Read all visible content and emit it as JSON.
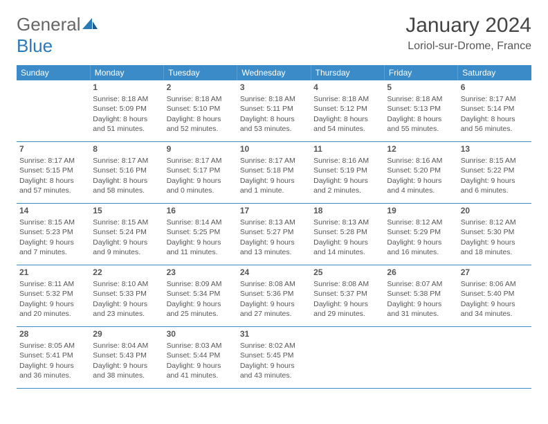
{
  "logo": {
    "text1": "General",
    "text2": "Blue"
  },
  "title": "January 2024",
  "subtitle": "Loriol-sur-Drome, France",
  "colors": {
    "header_bg": "#3b8bc9",
    "header_text": "#ffffff",
    "border": "#3b8bc9",
    "text": "#555555",
    "logo_gray": "#666666",
    "logo_blue": "#2a7ab8"
  },
  "day_headers": [
    "Sunday",
    "Monday",
    "Tuesday",
    "Wednesday",
    "Thursday",
    "Friday",
    "Saturday"
  ],
  "weeks": [
    [
      null,
      {
        "n": "1",
        "sr": "Sunrise: 8:18 AM",
        "ss": "Sunset: 5:09 PM",
        "dl": "Daylight: 8 hours and 51 minutes."
      },
      {
        "n": "2",
        "sr": "Sunrise: 8:18 AM",
        "ss": "Sunset: 5:10 PM",
        "dl": "Daylight: 8 hours and 52 minutes."
      },
      {
        "n": "3",
        "sr": "Sunrise: 8:18 AM",
        "ss": "Sunset: 5:11 PM",
        "dl": "Daylight: 8 hours and 53 minutes."
      },
      {
        "n": "4",
        "sr": "Sunrise: 8:18 AM",
        "ss": "Sunset: 5:12 PM",
        "dl": "Daylight: 8 hours and 54 minutes."
      },
      {
        "n": "5",
        "sr": "Sunrise: 8:18 AM",
        "ss": "Sunset: 5:13 PM",
        "dl": "Daylight: 8 hours and 55 minutes."
      },
      {
        "n": "6",
        "sr": "Sunrise: 8:17 AM",
        "ss": "Sunset: 5:14 PM",
        "dl": "Daylight: 8 hours and 56 minutes."
      }
    ],
    [
      {
        "n": "7",
        "sr": "Sunrise: 8:17 AM",
        "ss": "Sunset: 5:15 PM",
        "dl": "Daylight: 8 hours and 57 minutes."
      },
      {
        "n": "8",
        "sr": "Sunrise: 8:17 AM",
        "ss": "Sunset: 5:16 PM",
        "dl": "Daylight: 8 hours and 58 minutes."
      },
      {
        "n": "9",
        "sr": "Sunrise: 8:17 AM",
        "ss": "Sunset: 5:17 PM",
        "dl": "Daylight: 9 hours and 0 minutes."
      },
      {
        "n": "10",
        "sr": "Sunrise: 8:17 AM",
        "ss": "Sunset: 5:18 PM",
        "dl": "Daylight: 9 hours and 1 minute."
      },
      {
        "n": "11",
        "sr": "Sunrise: 8:16 AM",
        "ss": "Sunset: 5:19 PM",
        "dl": "Daylight: 9 hours and 2 minutes."
      },
      {
        "n": "12",
        "sr": "Sunrise: 8:16 AM",
        "ss": "Sunset: 5:20 PM",
        "dl": "Daylight: 9 hours and 4 minutes."
      },
      {
        "n": "13",
        "sr": "Sunrise: 8:15 AM",
        "ss": "Sunset: 5:22 PM",
        "dl": "Daylight: 9 hours and 6 minutes."
      }
    ],
    [
      {
        "n": "14",
        "sr": "Sunrise: 8:15 AM",
        "ss": "Sunset: 5:23 PM",
        "dl": "Daylight: 9 hours and 7 minutes."
      },
      {
        "n": "15",
        "sr": "Sunrise: 8:15 AM",
        "ss": "Sunset: 5:24 PM",
        "dl": "Daylight: 9 hours and 9 minutes."
      },
      {
        "n": "16",
        "sr": "Sunrise: 8:14 AM",
        "ss": "Sunset: 5:25 PM",
        "dl": "Daylight: 9 hours and 11 minutes."
      },
      {
        "n": "17",
        "sr": "Sunrise: 8:13 AM",
        "ss": "Sunset: 5:27 PM",
        "dl": "Daylight: 9 hours and 13 minutes."
      },
      {
        "n": "18",
        "sr": "Sunrise: 8:13 AM",
        "ss": "Sunset: 5:28 PM",
        "dl": "Daylight: 9 hours and 14 minutes."
      },
      {
        "n": "19",
        "sr": "Sunrise: 8:12 AM",
        "ss": "Sunset: 5:29 PM",
        "dl": "Daylight: 9 hours and 16 minutes."
      },
      {
        "n": "20",
        "sr": "Sunrise: 8:12 AM",
        "ss": "Sunset: 5:30 PM",
        "dl": "Daylight: 9 hours and 18 minutes."
      }
    ],
    [
      {
        "n": "21",
        "sr": "Sunrise: 8:11 AM",
        "ss": "Sunset: 5:32 PM",
        "dl": "Daylight: 9 hours and 20 minutes."
      },
      {
        "n": "22",
        "sr": "Sunrise: 8:10 AM",
        "ss": "Sunset: 5:33 PM",
        "dl": "Daylight: 9 hours and 23 minutes."
      },
      {
        "n": "23",
        "sr": "Sunrise: 8:09 AM",
        "ss": "Sunset: 5:34 PM",
        "dl": "Daylight: 9 hours and 25 minutes."
      },
      {
        "n": "24",
        "sr": "Sunrise: 8:08 AM",
        "ss": "Sunset: 5:36 PM",
        "dl": "Daylight: 9 hours and 27 minutes."
      },
      {
        "n": "25",
        "sr": "Sunrise: 8:08 AM",
        "ss": "Sunset: 5:37 PM",
        "dl": "Daylight: 9 hours and 29 minutes."
      },
      {
        "n": "26",
        "sr": "Sunrise: 8:07 AM",
        "ss": "Sunset: 5:38 PM",
        "dl": "Daylight: 9 hours and 31 minutes."
      },
      {
        "n": "27",
        "sr": "Sunrise: 8:06 AM",
        "ss": "Sunset: 5:40 PM",
        "dl": "Daylight: 9 hours and 34 minutes."
      }
    ],
    [
      {
        "n": "28",
        "sr": "Sunrise: 8:05 AM",
        "ss": "Sunset: 5:41 PM",
        "dl": "Daylight: 9 hours and 36 minutes."
      },
      {
        "n": "29",
        "sr": "Sunrise: 8:04 AM",
        "ss": "Sunset: 5:43 PM",
        "dl": "Daylight: 9 hours and 38 minutes."
      },
      {
        "n": "30",
        "sr": "Sunrise: 8:03 AM",
        "ss": "Sunset: 5:44 PM",
        "dl": "Daylight: 9 hours and 41 minutes."
      },
      {
        "n": "31",
        "sr": "Sunrise: 8:02 AM",
        "ss": "Sunset: 5:45 PM",
        "dl": "Daylight: 9 hours and 43 minutes."
      },
      null,
      null,
      null
    ]
  ]
}
